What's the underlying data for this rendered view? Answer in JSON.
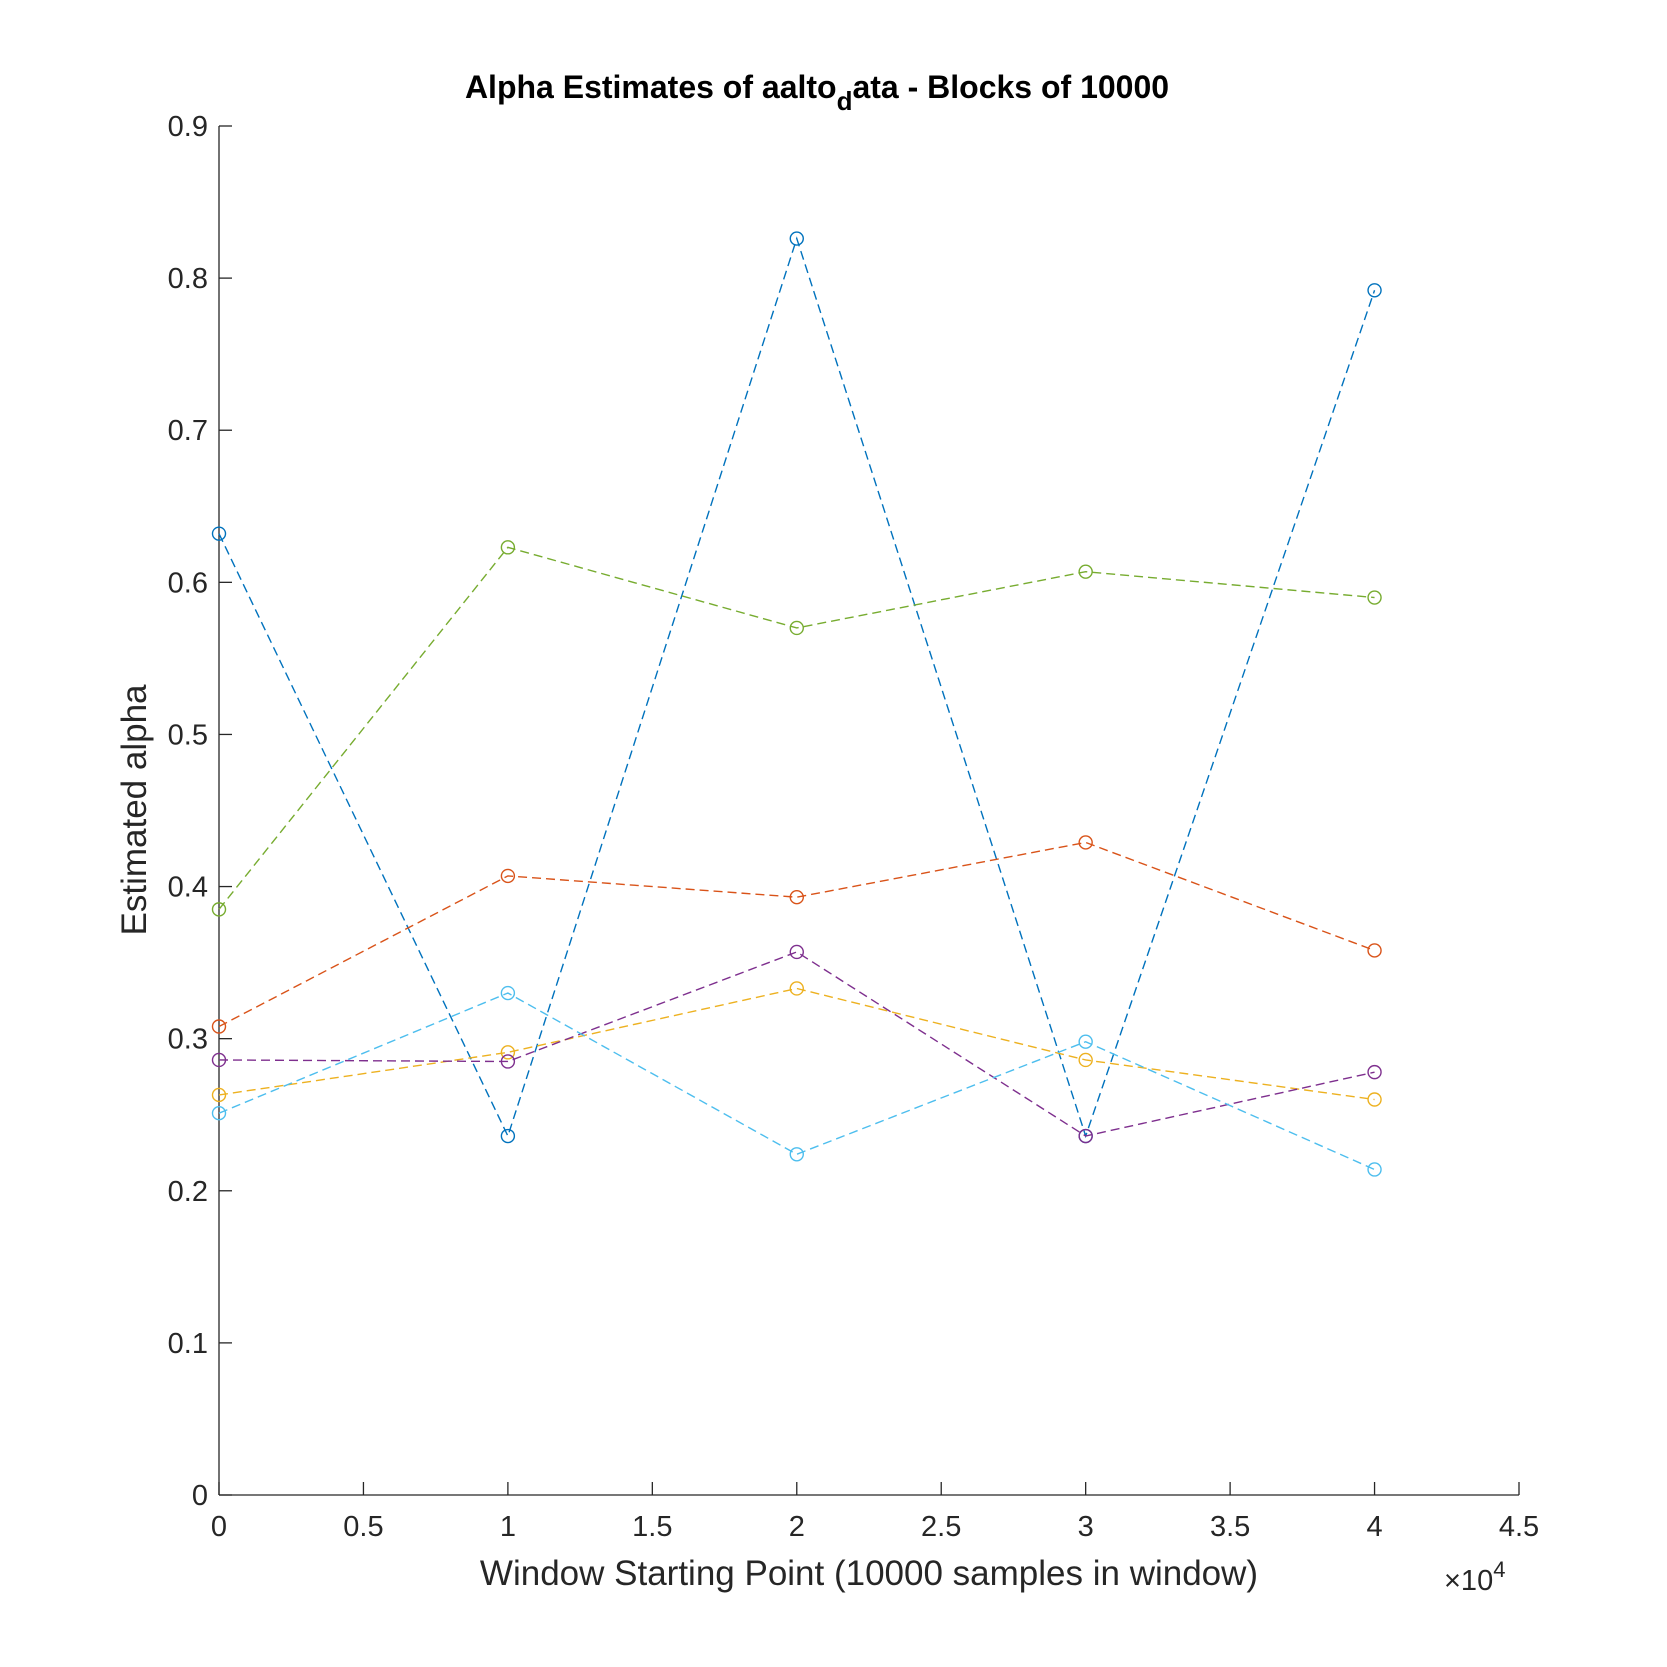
{
  "chart_data": {
    "type": "line",
    "title": "Alpha Estimates of aalto",
    "title_subscript": "d",
    "title_suffix": "ata - Blocks of 10000",
    "xlabel": "Window Starting Point (10000 samples in window)",
    "ylabel": "Estimated alpha",
    "x_exponent_prefix": "×10",
    "x_exponent_power": "4",
    "xlim": [
      0,
      4.5
    ],
    "ylim": [
      0,
      0.9
    ],
    "x_ticks": [
      "0",
      "0.5",
      "1",
      "1.5",
      "2",
      "2.5",
      "3",
      "3.5",
      "4",
      "4.5"
    ],
    "y_ticks": [
      "0",
      "0.1",
      "0.2",
      "0.3",
      "0.4",
      "0.5",
      "0.6",
      "0.7",
      "0.8",
      "0.9"
    ],
    "x": [
      0,
      1,
      2,
      3,
      4
    ],
    "line_style": "dashed",
    "marker": "open-circle",
    "grid": false,
    "series": [
      {
        "color": "#0072BD",
        "values": [
          0.632,
          0.236,
          0.826,
          0.236,
          0.792
        ]
      },
      {
        "color": "#D95319",
        "values": [
          0.308,
          0.407,
          0.393,
          0.429,
          0.358
        ]
      },
      {
        "color": "#EDB120",
        "values": [
          0.263,
          0.291,
          0.333,
          0.286,
          0.26
        ]
      },
      {
        "color": "#7E2F8E",
        "values": [
          0.286,
          0.285,
          0.357,
          0.236,
          0.278
        ]
      },
      {
        "color": "#77AC30",
        "values": [
          0.385,
          0.623,
          0.57,
          0.607,
          0.59
        ]
      },
      {
        "color": "#4DBEEE",
        "values": [
          0.251,
          0.33,
          0.224,
          0.298,
          0.214
        ]
      }
    ]
  }
}
